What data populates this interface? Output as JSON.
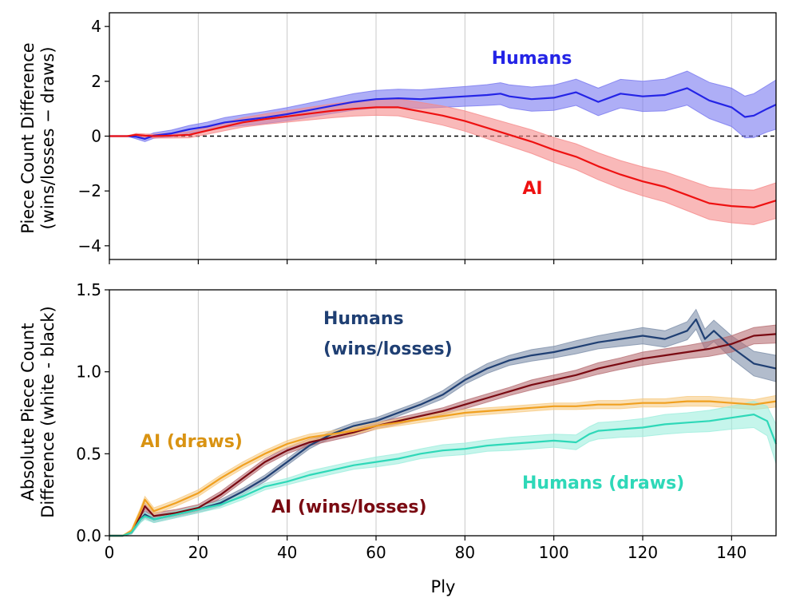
{
  "chart_data": [
    {
      "type": "line",
      "panel": "top",
      "ylabel_lines": [
        "Piece Count Difference",
        "(wins/losses − draws)"
      ],
      "xlim": [
        0,
        150
      ],
      "ylim": [
        -4.5,
        4.5
      ],
      "xticks": [
        0,
        20,
        40,
        60,
        80,
        100,
        120,
        140
      ],
      "yticks": [
        -4,
        -2,
        0,
        2,
        4
      ],
      "ytick_labels": [
        "−4",
        "−2",
        "0",
        "2",
        "4"
      ],
      "grid": "vertical",
      "reference_line": 0,
      "series": [
        {
          "name": "Humans",
          "color": "#2424e6",
          "fill": "#7878f0",
          "x": [
            0,
            4,
            6,
            8,
            10,
            14,
            18,
            22,
            26,
            30,
            35,
            40,
            45,
            50,
            55,
            60,
            65,
            70,
            75,
            80,
            85,
            88,
            90,
            95,
            100,
            105,
            110,
            115,
            120,
            125,
            130,
            135,
            140,
            143,
            145,
            148,
            150
          ],
          "values": [
            0,
            0,
            -0.02,
            -0.1,
            0.02,
            0.1,
            0.25,
            0.35,
            0.5,
            0.58,
            0.68,
            0.8,
            0.95,
            1.1,
            1.25,
            1.35,
            1.38,
            1.35,
            1.4,
            1.45,
            1.5,
            1.55,
            1.45,
            1.35,
            1.4,
            1.6,
            1.25,
            1.55,
            1.45,
            1.5,
            1.75,
            1.3,
            1.05,
            0.7,
            0.75,
            1.0,
            1.15
          ],
          "band": [
            0,
            0,
            0.08,
            0.1,
            0.1,
            0.12,
            0.14,
            0.16,
            0.18,
            0.2,
            0.22,
            0.24,
            0.26,
            0.28,
            0.3,
            0.32,
            0.33,
            0.34,
            0.35,
            0.36,
            0.38,
            0.4,
            0.42,
            0.44,
            0.46,
            0.48,
            0.5,
            0.52,
            0.55,
            0.58,
            0.62,
            0.66,
            0.7,
            0.76,
            0.8,
            0.85,
            0.9
          ]
        },
        {
          "name": "AI",
          "color": "#ee1111",
          "fill": "#f58a8a",
          "x": [
            0,
            4,
            6,
            8,
            10,
            14,
            18,
            22,
            26,
            30,
            35,
            40,
            45,
            50,
            55,
            60,
            65,
            70,
            75,
            80,
            85,
            90,
            95,
            100,
            105,
            110,
            115,
            120,
            125,
            130,
            135,
            140,
            145,
            150
          ],
          "values": [
            0,
            0,
            0.05,
            0.02,
            0.0,
            0.02,
            0.05,
            0.2,
            0.35,
            0.5,
            0.62,
            0.72,
            0.82,
            0.92,
            1.0,
            1.05,
            1.05,
            0.9,
            0.75,
            0.55,
            0.3,
            0.05,
            -0.2,
            -0.5,
            -0.75,
            -1.1,
            -1.4,
            -1.65,
            -1.85,
            -2.15,
            -2.45,
            -2.55,
            -2.6,
            -2.35
          ],
          "band": [
            0,
            0,
            0.05,
            0.06,
            0.07,
            0.09,
            0.11,
            0.13,
            0.15,
            0.17,
            0.19,
            0.21,
            0.23,
            0.25,
            0.27,
            0.29,
            0.31,
            0.33,
            0.35,
            0.37,
            0.39,
            0.41,
            0.43,
            0.45,
            0.47,
            0.49,
            0.51,
            0.53,
            0.55,
            0.57,
            0.59,
            0.61,
            0.63,
            0.65
          ]
        }
      ]
    },
    {
      "type": "line",
      "panel": "bottom",
      "xlabel": "Ply",
      "ylabel_lines": [
        "Absolute Piece Count",
        "Difference (white - black)"
      ],
      "xlim": [
        0,
        150
      ],
      "ylim": [
        0,
        1.5
      ],
      "xticks": [
        0,
        20,
        40,
        60,
        80,
        100,
        120,
        140
      ],
      "yticks": [
        0.0,
        0.5,
        1.0,
        1.5
      ],
      "ytick_labels": [
        "0.0",
        "0.5",
        "1.0",
        "1.5"
      ],
      "grid": "vertical",
      "series": [
        {
          "name": "Humans (wins/losses)",
          "label_lines": [
            "Humans",
            "(wins/losses)"
          ],
          "color": "#1f3f73",
          "fill": "#7e90aa",
          "x": [
            0,
            3,
            5,
            7,
            8,
            10,
            15,
            20,
            25,
            30,
            35,
            40,
            45,
            50,
            55,
            60,
            65,
            70,
            75,
            80,
            85,
            90,
            95,
            100,
            105,
            110,
            115,
            120,
            125,
            130,
            132,
            134,
            136,
            140,
            145,
            150
          ],
          "values": [
            0,
            0,
            0.02,
            0.1,
            0.13,
            0.1,
            0.13,
            0.16,
            0.2,
            0.27,
            0.35,
            0.45,
            0.55,
            0.62,
            0.67,
            0.7,
            0.75,
            0.8,
            0.86,
            0.95,
            1.02,
            1.07,
            1.1,
            1.12,
            1.15,
            1.18,
            1.2,
            1.22,
            1.2,
            1.25,
            1.32,
            1.2,
            1.25,
            1.15,
            1.05,
            1.02
          ],
          "band": [
            0,
            0,
            0.01,
            0.02,
            0.02,
            0.02,
            0.02,
            0.02,
            0.02,
            0.02,
            0.02,
            0.02,
            0.02,
            0.02,
            0.02,
            0.02,
            0.02,
            0.02,
            0.025,
            0.025,
            0.03,
            0.03,
            0.035,
            0.035,
            0.04,
            0.04,
            0.045,
            0.05,
            0.05,
            0.055,
            0.06,
            0.06,
            0.065,
            0.07,
            0.075,
            0.08
          ]
        },
        {
          "name": "AI (wins/losses)",
          "color": "#7a0a12",
          "fill": "#b87075",
          "x": [
            0,
            3,
            5,
            7,
            8,
            10,
            15,
            20,
            25,
            30,
            35,
            40,
            45,
            50,
            55,
            60,
            65,
            70,
            75,
            80,
            85,
            90,
            95,
            100,
            105,
            110,
            115,
            120,
            125,
            130,
            135,
            140,
            145,
            150
          ],
          "values": [
            0,
            0,
            0.02,
            0.12,
            0.18,
            0.12,
            0.14,
            0.17,
            0.25,
            0.35,
            0.45,
            0.52,
            0.57,
            0.6,
            0.63,
            0.67,
            0.7,
            0.73,
            0.76,
            0.8,
            0.84,
            0.88,
            0.92,
            0.95,
            0.98,
            1.02,
            1.05,
            1.08,
            1.1,
            1.12,
            1.14,
            1.17,
            1.22,
            1.23
          ],
          "band": [
            0,
            0,
            0.01,
            0.02,
            0.02,
            0.02,
            0.02,
            0.02,
            0.02,
            0.02,
            0.02,
            0.02,
            0.02,
            0.02,
            0.02,
            0.02,
            0.02,
            0.02,
            0.02,
            0.025,
            0.025,
            0.025,
            0.03,
            0.03,
            0.03,
            0.035,
            0.035,
            0.04,
            0.04,
            0.04,
            0.045,
            0.05,
            0.05,
            0.055
          ]
        },
        {
          "name": "AI (draws)",
          "color": "#f0a020",
          "fill": "#f7cc85",
          "x": [
            0,
            3,
            5,
            7,
            8,
            10,
            15,
            20,
            25,
            30,
            35,
            40,
            45,
            50,
            55,
            60,
            65,
            70,
            75,
            80,
            85,
            90,
            95,
            100,
            105,
            110,
            115,
            120,
            125,
            130,
            135,
            140,
            145,
            150
          ],
          "values": [
            0,
            0,
            0.03,
            0.15,
            0.22,
            0.15,
            0.2,
            0.26,
            0.35,
            0.43,
            0.5,
            0.56,
            0.6,
            0.62,
            0.64,
            0.67,
            0.69,
            0.71,
            0.73,
            0.75,
            0.76,
            0.77,
            0.78,
            0.79,
            0.79,
            0.8,
            0.8,
            0.81,
            0.81,
            0.82,
            0.82,
            0.81,
            0.8,
            0.82
          ],
          "band": [
            0,
            0,
            0.01,
            0.02,
            0.02,
            0.02,
            0.02,
            0.02,
            0.02,
            0.02,
            0.02,
            0.02,
            0.02,
            0.02,
            0.02,
            0.02,
            0.02,
            0.02,
            0.02,
            0.02,
            0.02,
            0.02,
            0.02,
            0.02,
            0.02,
            0.025,
            0.025,
            0.025,
            0.025,
            0.03,
            0.03,
            0.03,
            0.03,
            0.035
          ]
        },
        {
          "name": "Humans (draws)",
          "color": "#2ed8b8",
          "fill": "#9eeedd",
          "x": [
            0,
            3,
            5,
            7,
            8,
            10,
            15,
            20,
            25,
            30,
            35,
            40,
            45,
            50,
            55,
            60,
            65,
            70,
            75,
            80,
            85,
            90,
            95,
            100,
            105,
            108,
            110,
            115,
            120,
            125,
            130,
            135,
            140,
            145,
            148,
            150
          ],
          "values": [
            0,
            0,
            0.02,
            0.1,
            0.12,
            0.1,
            0.13,
            0.16,
            0.19,
            0.24,
            0.3,
            0.33,
            0.37,
            0.4,
            0.43,
            0.45,
            0.47,
            0.5,
            0.52,
            0.53,
            0.55,
            0.56,
            0.57,
            0.58,
            0.57,
            0.62,
            0.64,
            0.65,
            0.66,
            0.68,
            0.69,
            0.7,
            0.72,
            0.74,
            0.7,
            0.56
          ],
          "band": [
            0,
            0,
            0.01,
            0.02,
            0.02,
            0.02,
            0.02,
            0.02,
            0.02,
            0.02,
            0.02,
            0.02,
            0.025,
            0.025,
            0.025,
            0.03,
            0.03,
            0.03,
            0.035,
            0.035,
            0.035,
            0.04,
            0.04,
            0.04,
            0.045,
            0.045,
            0.05,
            0.05,
            0.055,
            0.06,
            0.06,
            0.065,
            0.07,
            0.08,
            0.09,
            0.12
          ]
        }
      ]
    }
  ]
}
